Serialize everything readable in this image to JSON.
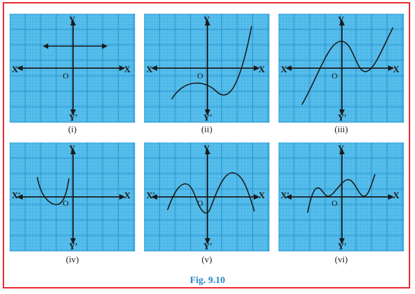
{
  "figure_label": "Fig. 9.10",
  "colors": {
    "border": "#e8282d",
    "grid_bg": "#4db8e8",
    "grid_line": "#2f96cf",
    "curve": "#1a1a1a",
    "caption_blue": "#2b86c5"
  },
  "axis_labels": {
    "x": "X",
    "x_neg": "X′",
    "y": "Y",
    "y_neg": "Y′",
    "origin": "O"
  },
  "panels": [
    {
      "caption": "(i)"
    },
    {
      "caption": "(ii)"
    },
    {
      "caption": "(iii)"
    },
    {
      "caption": "(iv)"
    },
    {
      "caption": "(v)"
    },
    {
      "caption": "(vi)"
    }
  ]
}
